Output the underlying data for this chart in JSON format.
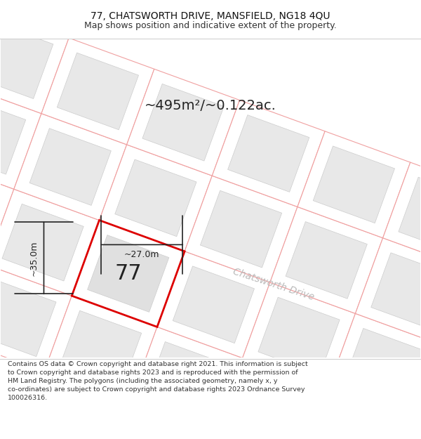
{
  "title_line1": "77, CHATSWORTH DRIVE, MANSFIELD, NG18 4QU",
  "title_line2": "Map shows position and indicative extent of the property.",
  "area_text": "~495m²/~0.122ac.",
  "property_number": "77",
  "dim_width": "~27.0m",
  "dim_height": "~35.0m",
  "road_name": "Chatsworth Drive",
  "footer_lines": [
    "Contains OS data © Crown copyright and database right 2021. This information is subject",
    "to Crown copyright and database rights 2023 and is reproduced with the permission of",
    "HM Land Registry. The polygons (including the associated geometry, namely x, y",
    "co-ordinates) are subject to Crown copyright and database rights 2023 Ordnance Survey",
    "100026316."
  ],
  "map_bg": "#ffffff",
  "block_fill": "#e8e8e8",
  "block_border": "#f0a0a0",
  "block_border_lw": 0.8,
  "lot_fill": "#e0e0e0",
  "lot_border_pink": "#f0a0a0",
  "property_fill": "#e8e8e8",
  "property_border": "#dd0000",
  "property_border_lw": 2.0,
  "dim_color": "#222222",
  "text_color": "#222222",
  "road_text_color": "#bbbbbb",
  "area_fontsize": 14,
  "number_fontsize": 22,
  "dim_fontsize": 9,
  "road_fontsize": 10,
  "title_fontsize": 10,
  "subtitle_fontsize": 9,
  "footer_fontsize": 6.8
}
